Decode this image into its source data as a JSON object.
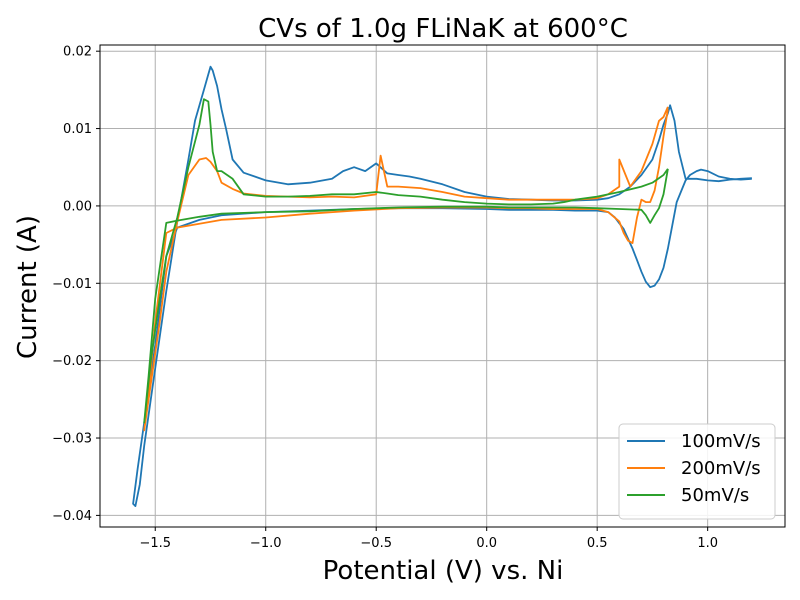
{
  "chart_data": {
    "type": "line",
    "title": "CVs of 1.0g FLiNaK at 600°C",
    "xlabel": "Potential (V) vs. Ni",
    "ylabel": "Current (A)",
    "xlim": [
      -1.75,
      1.35
    ],
    "ylim": [
      -0.0415,
      0.0208
    ],
    "xticks": [
      -1.5,
      -1.0,
      -0.5,
      0.0,
      0.5,
      1.0
    ],
    "xtick_labels": [
      "−1.5",
      "−1.0",
      "−0.5",
      "0.0",
      "0.5",
      "1.0"
    ],
    "yticks": [
      -0.04,
      -0.03,
      -0.02,
      -0.01,
      0.0,
      0.01,
      0.02
    ],
    "ytick_labels": [
      "−0.04",
      "−0.03",
      "−0.02",
      "−0.01",
      "0.00",
      "0.01",
      "0.02"
    ],
    "grid": true,
    "legend_position": "lower-right",
    "series": [
      {
        "name": "100mV/s",
        "color": "#1f77b4",
        "x": [
          1.2,
          1.15,
          1.1,
          1.05,
          1.0,
          0.97,
          0.95,
          0.92,
          0.9,
          0.86,
          0.84,
          0.82,
          0.8,
          0.78,
          0.76,
          0.74,
          0.72,
          0.7,
          0.68,
          0.66,
          0.62,
          0.58,
          0.55,
          0.5,
          0.4,
          0.3,
          0.2,
          0.1,
          0.0,
          -0.2,
          -0.4,
          -0.6,
          -0.8,
          -1.0,
          -1.2,
          -1.3,
          -1.4,
          -1.45,
          -1.5,
          -1.55,
          -1.58,
          -1.6,
          -1.59,
          -1.57,
          -1.55,
          -1.5,
          -1.45,
          -1.4,
          -1.35,
          -1.32,
          -1.28,
          -1.26,
          -1.25,
          -1.24,
          -1.22,
          -1.2,
          -1.18,
          -1.15,
          -1.1,
          -1.05,
          -1.0,
          -0.9,
          -0.8,
          -0.7,
          -0.65,
          -0.6,
          -0.55,
          -0.5,
          -0.45,
          -0.4,
          -0.35,
          -0.3,
          -0.2,
          -0.1,
          0.0,
          0.1,
          0.2,
          0.3,
          0.4,
          0.5,
          0.55,
          0.6,
          0.65,
          0.7,
          0.75,
          0.78,
          0.8,
          0.82,
          0.83,
          0.85,
          0.87,
          0.9,
          0.95,
          1.0,
          1.05,
          1.1,
          1.15,
          1.2
        ],
        "y": [
          0.0035,
          0.0034,
          0.0035,
          0.0038,
          0.0045,
          0.0047,
          0.0045,
          0.004,
          0.0033,
          0.0005,
          -0.0025,
          -0.0055,
          -0.008,
          -0.0095,
          -0.0103,
          -0.0105,
          -0.0098,
          -0.0085,
          -0.007,
          -0.0055,
          -0.003,
          -0.0015,
          -0.0008,
          -0.0006,
          -0.0006,
          -0.0005,
          -0.0005,
          -0.0005,
          -0.0004,
          -0.0003,
          -0.0003,
          -0.0004,
          -0.0006,
          -0.0008,
          -0.0012,
          -0.0018,
          -0.0028,
          -0.0065,
          -0.018,
          -0.028,
          -0.034,
          -0.0385,
          -0.0388,
          -0.036,
          -0.031,
          -0.021,
          -0.011,
          -0.002,
          0.006,
          0.011,
          0.015,
          0.017,
          0.018,
          0.0175,
          0.0155,
          0.0125,
          0.01,
          0.006,
          0.0043,
          0.0038,
          0.0033,
          0.0028,
          0.003,
          0.0035,
          0.0045,
          0.005,
          0.0045,
          0.0055,
          0.0042,
          0.004,
          0.0038,
          0.0035,
          0.0028,
          0.0018,
          0.0012,
          0.0009,
          0.0008,
          0.0007,
          0.0007,
          0.0008,
          0.001,
          0.0015,
          0.0025,
          0.004,
          0.006,
          0.0085,
          0.0105,
          0.012,
          0.013,
          0.011,
          0.007,
          0.0035,
          0.0035,
          0.0033,
          0.0032,
          0.0034,
          0.0035,
          0.0036
        ]
      },
      {
        "name": "200mV/s",
        "color": "#ff7f0e",
        "x": [
          0.82,
          0.8,
          0.78,
          0.76,
          0.74,
          0.72,
          0.7,
          0.68,
          0.66,
          0.64,
          0.62,
          0.6,
          0.55,
          0.5,
          0.4,
          0.3,
          0.2,
          0.1,
          0.0,
          -0.2,
          -0.4,
          -0.6,
          -0.8,
          -1.0,
          -1.2,
          -1.3,
          -1.4,
          -1.45,
          -1.5,
          -1.53,
          -1.55,
          -1.52,
          -1.48,
          -1.45,
          -1.4,
          -1.35,
          -1.3,
          -1.27,
          -1.25,
          -1.22,
          -1.2,
          -1.15,
          -1.1,
          -1.0,
          -0.9,
          -0.8,
          -0.7,
          -0.6,
          -0.5,
          -0.48,
          -0.45,
          -0.4,
          -0.3,
          -0.2,
          -0.1,
          0.0,
          0.1,
          0.2,
          0.3,
          0.4,
          0.5,
          0.55,
          0.6,
          0.6,
          0.65,
          0.7,
          0.75,
          0.78,
          0.8,
          0.82
        ],
        "y": [
          0.0125,
          0.009,
          0.005,
          0.002,
          0.0005,
          0.0005,
          0.0008,
          -0.0015,
          -0.0048,
          -0.0045,
          -0.0035,
          -0.002,
          -0.0008,
          -0.0004,
          -0.0004,
          -0.0004,
          -0.0003,
          -0.0003,
          -0.0002,
          -0.0002,
          -0.0003,
          -0.0006,
          -0.001,
          -0.0015,
          -0.0018,
          -0.0023,
          -0.0028,
          -0.0035,
          -0.015,
          -0.024,
          -0.029,
          -0.023,
          -0.015,
          -0.0085,
          -0.002,
          0.004,
          0.006,
          0.0062,
          0.0057,
          0.0045,
          0.003,
          0.0022,
          0.0016,
          0.0013,
          0.0012,
          0.0011,
          0.0012,
          0.0011,
          0.0015,
          0.0065,
          0.0025,
          0.0025,
          0.0023,
          0.0018,
          0.0012,
          0.001,
          0.0008,
          0.0008,
          0.0008,
          0.0008,
          0.001,
          0.0015,
          0.0025,
          0.006,
          0.0025,
          0.0045,
          0.008,
          0.011,
          0.0115,
          0.0128
        ]
      },
      {
        "name": "50mV/s",
        "color": "#2ca02c",
        "x": [
          0.82,
          0.8,
          0.78,
          0.76,
          0.74,
          0.72,
          0.7,
          0.6,
          0.5,
          0.4,
          0.3,
          0.2,
          0.1,
          0.0,
          -0.2,
          -0.4,
          -0.6,
          -0.8,
          -1.0,
          -1.2,
          -1.3,
          -1.4,
          -1.45,
          -1.5,
          -1.53,
          -1.55,
          -1.52,
          -1.48,
          -1.45,
          -1.4,
          -1.35,
          -1.3,
          -1.28,
          -1.26,
          -1.25,
          -1.24,
          -1.22,
          -1.2,
          -1.15,
          -1.1,
          -1.0,
          -0.9,
          -0.8,
          -0.7,
          -0.6,
          -0.5,
          -0.45,
          -0.4,
          -0.3,
          -0.2,
          -0.1,
          0.0,
          0.1,
          0.2,
          0.3,
          0.35,
          0.4,
          0.5,
          0.6,
          0.7,
          0.75,
          0.8,
          0.82
        ],
        "y": [
          0.0048,
          0.0015,
          -0.0003,
          -0.0012,
          -0.0022,
          -0.0012,
          -0.0005,
          -0.0004,
          -0.0003,
          -0.0002,
          -0.0002,
          -0.0002,
          -0.0002,
          -0.0001,
          -0.0001,
          -0.0002,
          -0.0004,
          -0.0007,
          -0.0008,
          -0.001,
          -0.0014,
          -0.0019,
          -0.0022,
          -0.012,
          -0.022,
          -0.028,
          -0.02,
          -0.012,
          -0.0065,
          -0.0015,
          0.005,
          0.0105,
          0.0138,
          0.0135,
          0.0105,
          0.007,
          0.0045,
          0.0045,
          0.0035,
          0.0015,
          0.0012,
          0.0012,
          0.0013,
          0.0015,
          0.0015,
          0.0018,
          0.0016,
          0.0014,
          0.0012,
          0.0008,
          0.0005,
          0.0003,
          0.0002,
          0.0002,
          0.0003,
          0.0005,
          0.0008,
          0.0012,
          0.0018,
          0.0025,
          0.003,
          0.004,
          0.0048
        ]
      }
    ]
  }
}
